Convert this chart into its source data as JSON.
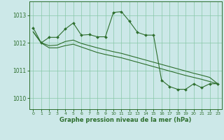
{
  "title": "Graphe pression niveau de la mer (hPa)",
  "background_color": "#cce8e8",
  "grid_color": "#88c8a8",
  "line_color": "#2d6e2d",
  "xlim": [
    -0.5,
    23.5
  ],
  "ylim": [
    1009.6,
    1013.5
  ],
  "yticks": [
    1010,
    1011,
    1012,
    1013
  ],
  "xticks": [
    0,
    1,
    2,
    3,
    4,
    5,
    6,
    7,
    8,
    9,
    10,
    11,
    12,
    13,
    14,
    15,
    16,
    17,
    18,
    19,
    20,
    21,
    22,
    23
  ],
  "series1_x": [
    0,
    1,
    2,
    3,
    4,
    5,
    6,
    7,
    8,
    9,
    10,
    11,
    12,
    13,
    14,
    15,
    16,
    17,
    18,
    19,
    20,
    21,
    22,
    23
  ],
  "series1_y": [
    1012.55,
    1012.0,
    1012.2,
    1012.2,
    1012.5,
    1012.72,
    1012.28,
    1012.3,
    1012.22,
    1012.22,
    1013.1,
    1013.13,
    1012.78,
    1012.38,
    1012.28,
    1012.28,
    1010.65,
    1010.42,
    1010.32,
    1010.32,
    1010.52,
    1010.38,
    1010.52,
    1010.52
  ],
  "series2_x": [
    0,
    1,
    2,
    3,
    4,
    5,
    6,
    7,
    8,
    9,
    10,
    11,
    12,
    13,
    14,
    15,
    16,
    17,
    18,
    19,
    20,
    21,
    22,
    23
  ],
  "series2_y": [
    1012.4,
    1012.0,
    1011.82,
    1011.82,
    1011.9,
    1011.95,
    1011.85,
    1011.75,
    1011.65,
    1011.58,
    1011.52,
    1011.46,
    1011.38,
    1011.3,
    1011.22,
    1011.14,
    1011.06,
    1010.98,
    1010.9,
    1010.82,
    1010.75,
    1010.68,
    1010.6,
    1010.52
  ],
  "series3_x": [
    0,
    1,
    2,
    3,
    4,
    5,
    6,
    7,
    8,
    9,
    10,
    11,
    12,
    13,
    14,
    15,
    16,
    17,
    18,
    19,
    20,
    21,
    22,
    23
  ],
  "series3_y": [
    1012.4,
    1012.0,
    1011.9,
    1011.92,
    1012.05,
    1012.1,
    1011.98,
    1011.9,
    1011.82,
    1011.75,
    1011.68,
    1011.62,
    1011.54,
    1011.46,
    1011.38,
    1011.3,
    1011.22,
    1011.14,
    1011.06,
    1010.98,
    1010.9,
    1010.83,
    1010.75,
    1010.52
  ]
}
